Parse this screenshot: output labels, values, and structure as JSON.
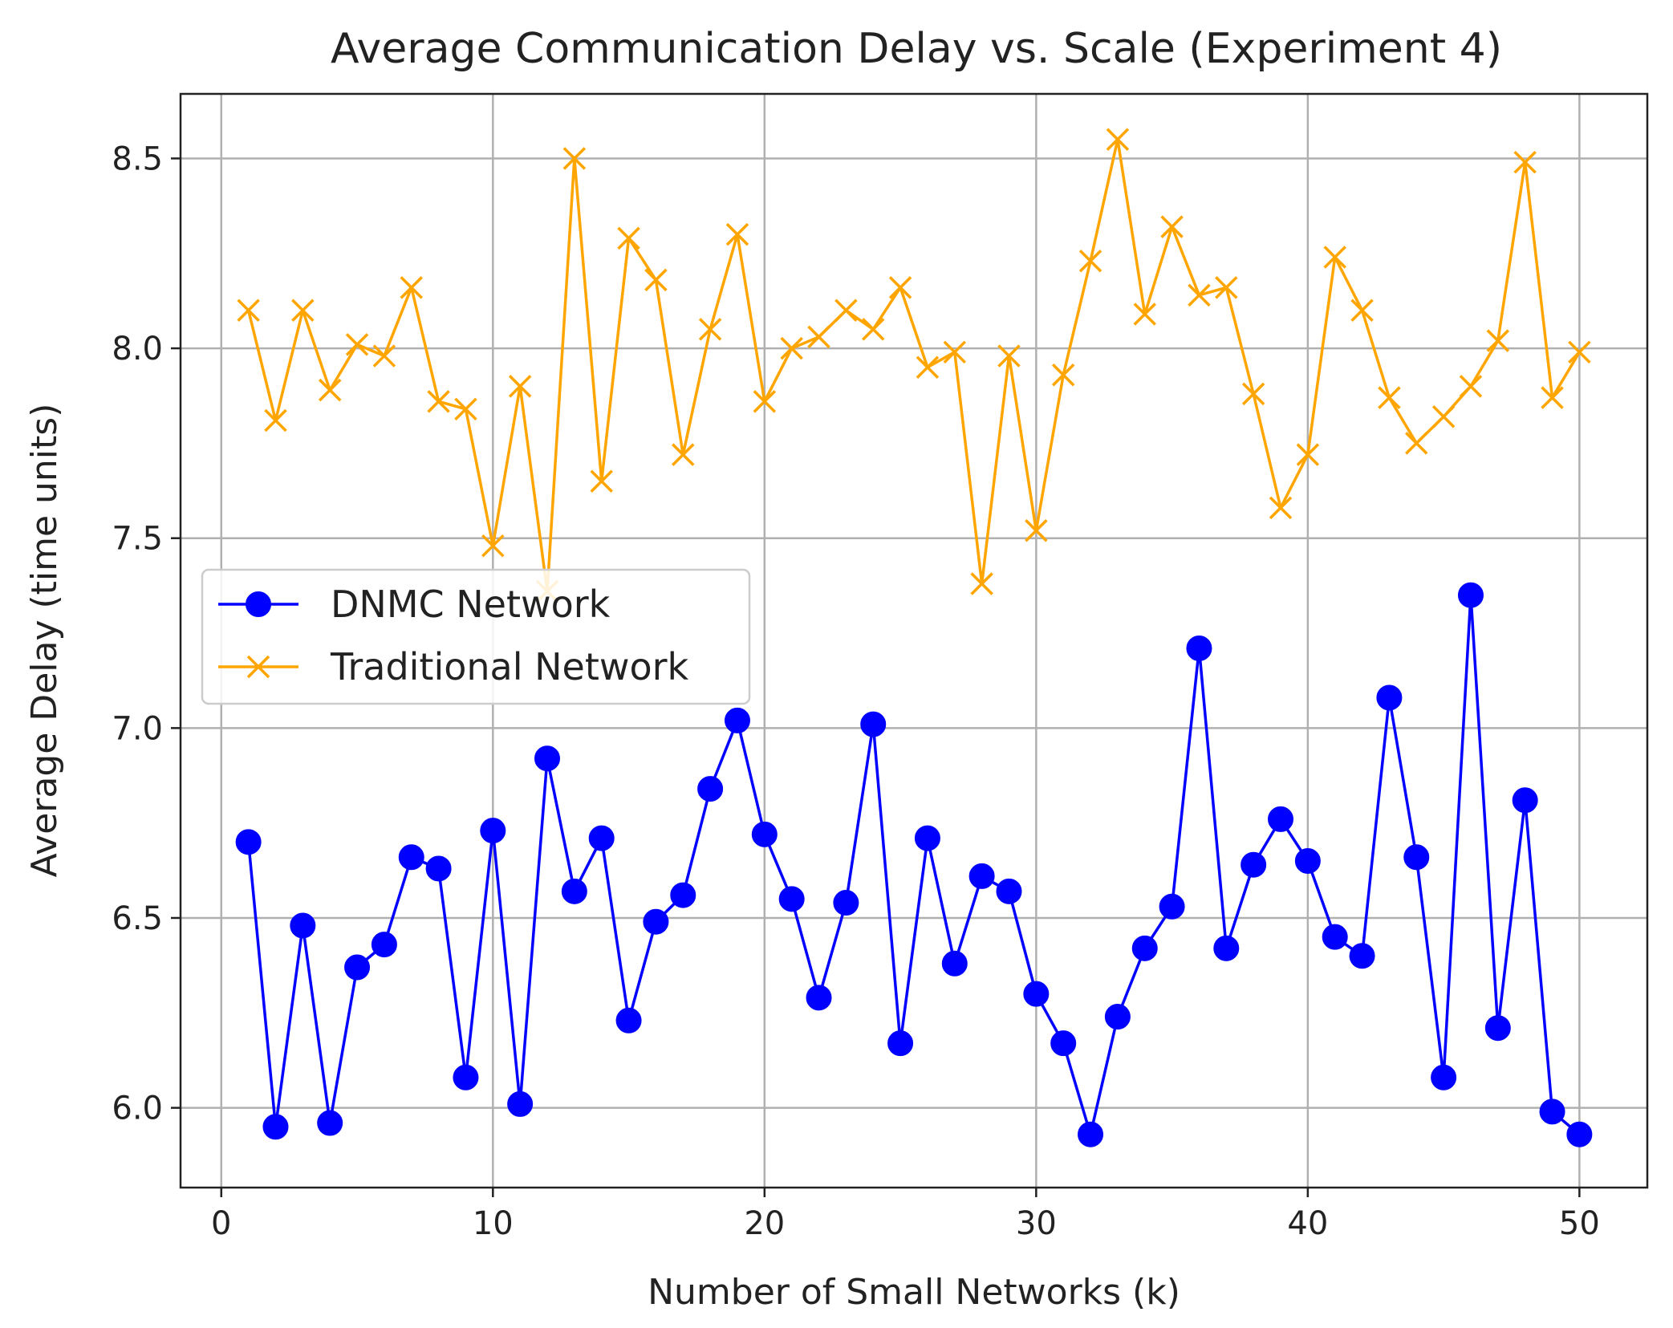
{
  "chart_data": {
    "type": "line",
    "title": "Average Communication Delay vs. Scale (Experiment 4)",
    "xlabel": "Number of Small Networks (k)",
    "ylabel": "Average Delay (time units)",
    "xlim": [
      -1.5,
      52.5
    ],
    "ylim": [
      5.79,
      8.67
    ],
    "xticks": [
      0,
      10,
      20,
      30,
      40,
      50
    ],
    "xtick_labels": [
      "0",
      "10",
      "20",
      "30",
      "40",
      "50"
    ],
    "yticks": [
      6.0,
      6.5,
      7.0,
      7.5,
      8.0,
      8.5
    ],
    "ytick_labels": [
      "6.0",
      "6.5",
      "7.0",
      "7.5",
      "8.0",
      "8.5"
    ],
    "grid": true,
    "legend_position": "center-left",
    "x": [
      1,
      2,
      3,
      4,
      5,
      6,
      7,
      8,
      9,
      10,
      11,
      12,
      13,
      14,
      15,
      16,
      17,
      18,
      19,
      20,
      21,
      22,
      23,
      24,
      25,
      26,
      27,
      28,
      29,
      30,
      31,
      32,
      33,
      34,
      35,
      36,
      37,
      38,
      39,
      40,
      41,
      42,
      43,
      44,
      45,
      46,
      47,
      48,
      49,
      50
    ],
    "series": [
      {
        "name": "DNMC Network",
        "color": "#0000ff",
        "marker": "circle",
        "values": [
          6.7,
          5.95,
          6.48,
          5.96,
          6.37,
          6.43,
          6.66,
          6.63,
          6.08,
          6.73,
          6.01,
          6.92,
          6.57,
          6.71,
          6.23,
          6.49,
          6.56,
          6.84,
          7.02,
          6.72,
          6.55,
          6.29,
          6.54,
          7.01,
          6.17,
          6.71,
          6.38,
          6.61,
          6.57,
          6.3,
          6.17,
          5.93,
          6.24,
          6.42,
          6.53,
          7.21,
          6.42,
          6.64,
          6.76,
          6.65,
          6.45,
          6.4,
          7.08,
          6.66,
          6.08,
          7.35,
          6.21,
          6.81,
          5.99,
          5.93
        ]
      },
      {
        "name": "Traditional Network",
        "color": "#ffa500",
        "marker": "x",
        "values": [
          8.1,
          7.81,
          8.1,
          7.89,
          8.01,
          7.98,
          8.16,
          7.86,
          7.84,
          7.48,
          7.9,
          7.36,
          8.5,
          7.65,
          8.29,
          8.18,
          7.72,
          8.05,
          8.3,
          7.86,
          8.0,
          8.03,
          8.1,
          8.05,
          8.16,
          7.95,
          7.99,
          7.38,
          7.98,
          7.52,
          7.93,
          8.23,
          8.55,
          8.09,
          8.32,
          8.14,
          8.16,
          7.88,
          7.58,
          7.72,
          8.24,
          8.1,
          7.87,
          7.75,
          7.82,
          7.9,
          8.02,
          8.49,
          7.87,
          7.99
        ]
      }
    ]
  }
}
